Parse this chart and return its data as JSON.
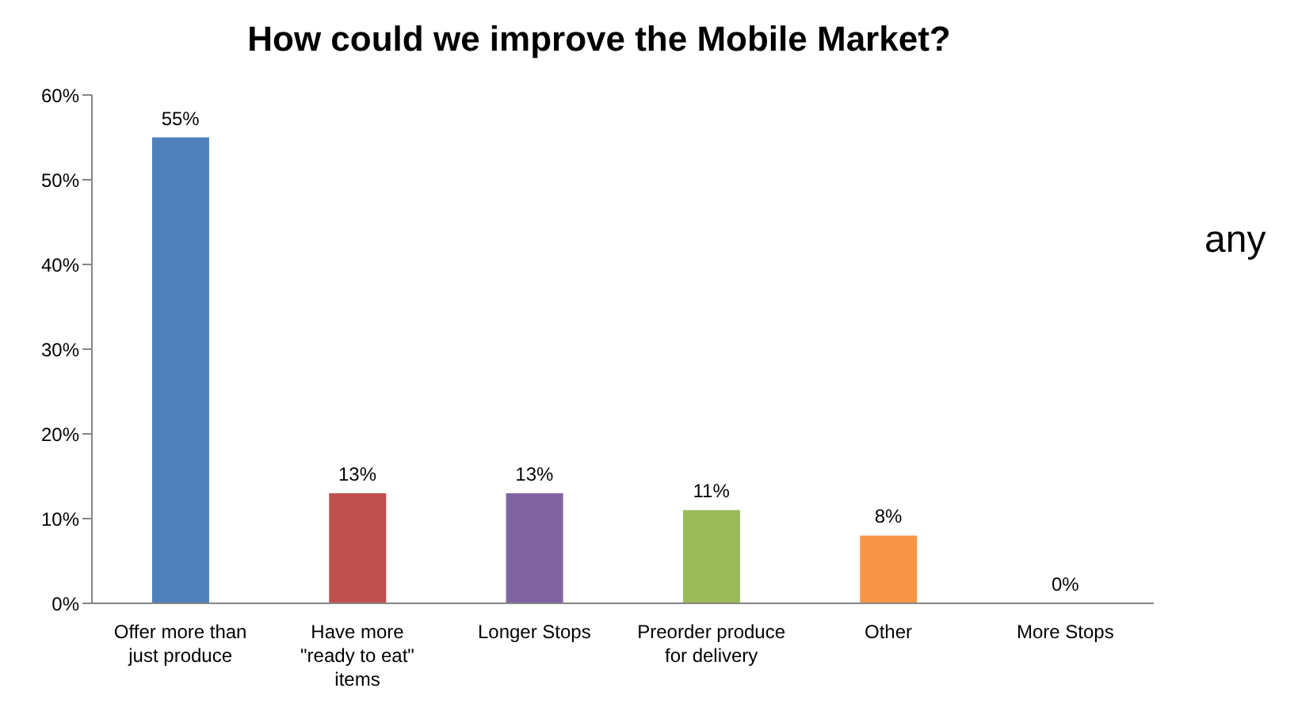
{
  "chart_data": {
    "type": "bar",
    "title": "How could we improve the Mobile Market?",
    "categories": [
      "Offer more than just produce",
      "Have more \"ready to eat\" items",
      "Longer Stops",
      "Preorder produce for delivery",
      "Other",
      "More Stops"
    ],
    "values": [
      55,
      13,
      13,
      11,
      8,
      0
    ],
    "colors": [
      "#4f81bd",
      "#c0504d",
      "#8064a2",
      "#9bbb59",
      "#f79646",
      "#4bacc6"
    ],
    "value_labels": [
      "55%",
      "13%",
      "13%",
      "11%",
      "8%",
      "0%"
    ],
    "ylim": [
      0,
      60
    ],
    "yticks": [
      {
        "value": 0,
        "label": "0%"
      },
      {
        "value": 10,
        "label": "10%"
      },
      {
        "value": 20,
        "label": "20%"
      },
      {
        "value": 30,
        "label": "30%"
      },
      {
        "value": 40,
        "label": "40%"
      },
      {
        "value": 50,
        "label": "50%"
      },
      {
        "value": 60,
        "label": "60%"
      }
    ],
    "grid": false,
    "legend": false,
    "annotations": [
      "any"
    ]
  }
}
